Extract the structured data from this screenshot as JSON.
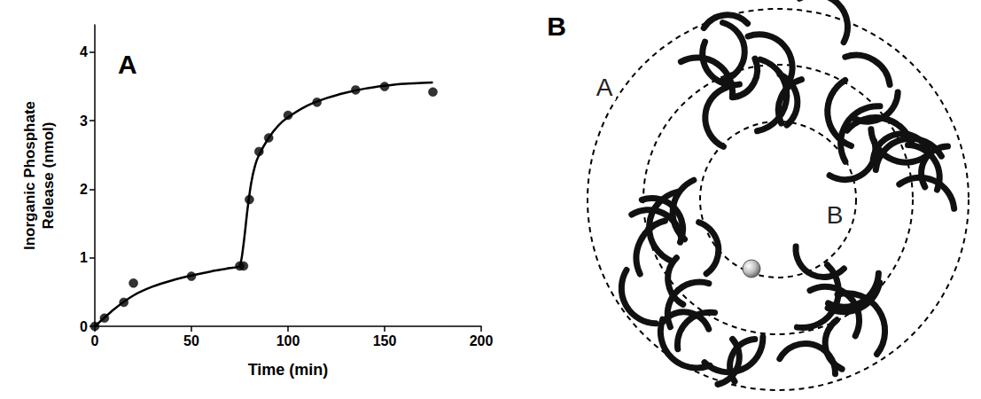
{
  "chart_data": {
    "type": "scatter",
    "title": "A",
    "x_label": "Time (min)",
    "y_label": "Inorganic Phosphate Release (nmol)",
    "xlim": [
      0,
      200
    ],
    "xticks": [
      0,
      50,
      100,
      150,
      200
    ],
    "ylim": [
      0,
      4.4
    ],
    "yticks": [
      0,
      1,
      2,
      3,
      4
    ],
    "grid": false,
    "series": [
      {
        "type": "scatter",
        "marker": "circle",
        "color": "#000000",
        "x": [
          0,
          5,
          15,
          20,
          50,
          75,
          77,
          80,
          85,
          90,
          100,
          115,
          135,
          150,
          175
        ],
        "values": [
          0,
          0.12,
          0.35,
          0.63,
          0.73,
          0.88,
          0.88,
          1.85,
          2.55,
          2.75,
          3.08,
          3.27,
          3.45,
          3.5,
          3.42
        ]
      },
      {
        "type": "line",
        "line_style": "solid",
        "color": "#000000",
        "x": [
          0,
          10,
          20,
          30,
          40,
          50,
          60,
          70,
          75,
          77,
          79,
          81,
          83,
          85,
          90,
          95,
          100,
          110,
          120,
          130,
          140,
          150,
          160,
          175
        ],
        "values": [
          0,
          0.25,
          0.45,
          0.58,
          0.67,
          0.74,
          0.8,
          0.85,
          0.88,
          1.2,
          1.7,
          2.1,
          2.35,
          2.5,
          2.75,
          2.93,
          3.05,
          3.22,
          3.33,
          3.41,
          3.47,
          3.51,
          3.54,
          3.56
        ]
      }
    ]
  },
  "diagram": {
    "panel_label": "B",
    "labels": [
      {
        "text": "A"
      },
      {
        "text": "B"
      }
    ]
  }
}
